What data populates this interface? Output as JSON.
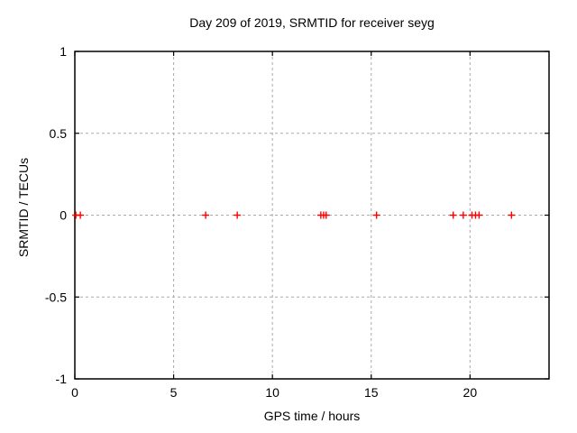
{
  "chart_data": {
    "type": "scatter",
    "title": "Day 209 of 2019, SRMTID for receiver seyg",
    "xlabel": "GPS time / hours",
    "ylabel": "SRMTID / TECUs",
    "xlim": [
      0,
      24
    ],
    "ylim": [
      -1,
      1
    ],
    "xticks": [
      0,
      5,
      10,
      15,
      20
    ],
    "xtick_labels": [
      "0",
      "5",
      "10",
      "15",
      "20"
    ],
    "yticks": [
      -1,
      -0.5,
      0,
      0.5,
      1
    ],
    "ytick_labels": [
      "-1",
      "-0.5",
      "0",
      "0.5",
      "1"
    ],
    "grid": true,
    "legend": "none",
    "marker": "plus",
    "colors": {
      "marker": "#ff0000",
      "grid": "#aaaaaa",
      "border": "#000000",
      "text": "#000000",
      "background": "#ffffff"
    },
    "series": [
      {
        "x": [
          0.05,
          0.28,
          6.62,
          8.22,
          12.45,
          12.59,
          12.72,
          15.27,
          19.15,
          19.66,
          20.1,
          20.28,
          20.46,
          22.1
        ],
        "y": [
          0,
          0,
          0,
          0,
          0,
          0,
          0,
          0,
          0,
          0,
          0,
          0,
          0,
          0
        ]
      }
    ]
  }
}
